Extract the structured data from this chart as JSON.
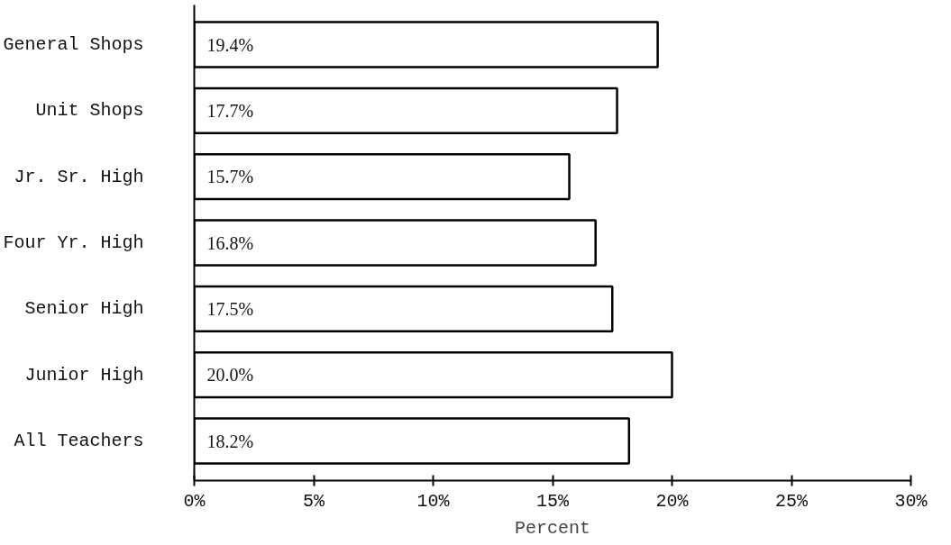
{
  "chart_data": {
    "type": "bar",
    "orientation": "horizontal",
    "xlabel": "Percent",
    "categories": [
      "General Shops",
      "Unit Shops",
      "Jr. Sr. High",
      "Four Yr. High",
      "Senior High",
      "Junior High",
      "All Teachers"
    ],
    "values": [
      19.4,
      17.7,
      15.7,
      16.8,
      17.5,
      20.0,
      18.2
    ],
    "value_labels": [
      "19.4%",
      "17.7%",
      "15.7%",
      "16.8%",
      "17.5%",
      "20.0%",
      "18.2%"
    ],
    "color": "#ffffff",
    "xlim": [
      0,
      30
    ],
    "xticks": [
      {
        "value": 0,
        "label": "0%"
      },
      {
        "value": 5,
        "label": "5%"
      },
      {
        "value": 10,
        "label": "10%"
      },
      {
        "value": 15,
        "label": "15%"
      },
      {
        "value": 20,
        "label": "20%"
      },
      {
        "value": 25,
        "label": "25%"
      },
      {
        "value": 30,
        "label": "30%"
      }
    ],
    "grid": false
  }
}
